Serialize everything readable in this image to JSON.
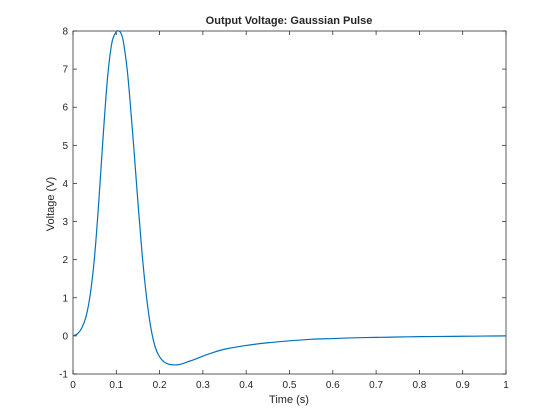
{
  "chart_data": {
    "type": "line",
    "title": "Output Voltage: Gaussian Pulse",
    "xlabel": "Time (s)",
    "ylabel": "Voltage (V)",
    "xlim": [
      0,
      1
    ],
    "ylim": [
      -1,
      8
    ],
    "xticks": [
      "0",
      "0.1",
      "0.2",
      "0.3",
      "0.4",
      "0.5",
      "0.6",
      "0.7",
      "0.8",
      "0.9",
      "1"
    ],
    "yticks": [
      "-1",
      "0",
      "1",
      "2",
      "3",
      "4",
      "5",
      "6",
      "7",
      "8"
    ],
    "grid": false,
    "series_color": "#0072BD",
    "series": [
      {
        "x": [
          0,
          0.01,
          0.02,
          0.03,
          0.04,
          0.05,
          0.06,
          0.07,
          0.08,
          0.09,
          0.1,
          0.105,
          0.11,
          0.115,
          0.12,
          0.125,
          0.13,
          0.14,
          0.15,
          0.16,
          0.17,
          0.18,
          0.19,
          0.2,
          0.21,
          0.22,
          0.23,
          0.24,
          0.25,
          0.26,
          0.28,
          0.3,
          0.32,
          0.35,
          0.4,
          0.45,
          0.5,
          0.55,
          0.6,
          0.65,
          0.7,
          0.75,
          0.8,
          0.85,
          0.9,
          0.95,
          1.0
        ],
        "values": [
          0.0,
          0.05,
          0.2,
          0.5,
          1.1,
          2.1,
          3.6,
          5.3,
          6.8,
          7.7,
          7.98,
          8.0,
          7.96,
          7.8,
          7.45,
          7.0,
          6.4,
          5.0,
          3.5,
          2.1,
          1.0,
          0.2,
          -0.3,
          -0.55,
          -0.68,
          -0.74,
          -0.76,
          -0.76,
          -0.74,
          -0.7,
          -0.62,
          -0.53,
          -0.45,
          -0.35,
          -0.25,
          -0.18,
          -0.13,
          -0.09,
          -0.07,
          -0.05,
          -0.04,
          -0.03,
          -0.02,
          -0.015,
          -0.01,
          -0.005,
          0.0
        ]
      }
    ]
  }
}
